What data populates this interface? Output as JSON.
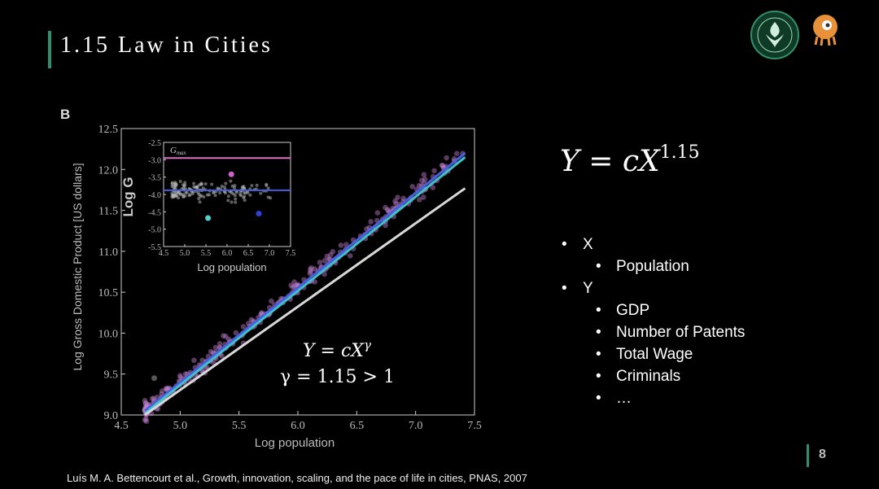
{
  "slide": {
    "title": "1.15 Law in Cities",
    "formula_main": "Y = cX",
    "formula_exp": "1.15",
    "bullets": [
      {
        "label": "X",
        "level": 0
      },
      {
        "label": "Population",
        "level": 1
      },
      {
        "label": "Y",
        "level": 0
      },
      {
        "label": "GDP",
        "level": 1
      },
      {
        "label": "Number of Patents",
        "level": 1
      },
      {
        "label": "Total Wage",
        "level": 1
      },
      {
        "label": "Criminals",
        "level": 1
      },
      {
        "label": "…",
        "level": 1
      }
    ],
    "page_number": "8",
    "citation": "Luís M. A. Bettencourt et al., Growth, innovation, scaling, and the pace of life in cities, PNAS, 2007",
    "accent_color": "#2f8f6f"
  },
  "chart_data": [
    {
      "type": "scatter",
      "panel_label": "B",
      "xlabel": "Log population",
      "ylabel": "Log Gross Domestic Product [US dollars]",
      "xlim": [
        4.5,
        7.5
      ],
      "ylim": [
        9.0,
        12.5
      ],
      "xticks": [
        "4.5",
        "5.0",
        "5.5",
        "6.0",
        "6.5",
        "7.0",
        "7.5"
      ],
      "yticks": [
        "9.0",
        "9.5",
        "10.0",
        "10.5",
        "11.0",
        "11.5",
        "12.0",
        "12.5"
      ],
      "annotation_line1": "Y = cX",
      "annotation_gamma": "γ",
      "annotation_line2": "γ = 1.15 > 1",
      "series": [
        {
          "color": "#4a5fe0",
          "fit_endpoints": [
            [
              4.7,
              9.05
            ],
            [
              7.42,
              12.2
            ]
          ]
        },
        {
          "color": "#40c0c8",
          "fit_endpoints": [
            [
              4.7,
              9.02
            ],
            [
              7.42,
              12.15
            ]
          ]
        },
        {
          "color": "#d8d8d8",
          "fit_endpoints": [
            [
              4.7,
              9.0
            ],
            [
              7.42,
              11.77
            ]
          ]
        }
      ],
      "points_color": "#c080d0",
      "highlight_point": [
        4.78,
        9.45
      ]
    },
    {
      "type": "scatter",
      "role": "inset",
      "xlabel": "Log population",
      "ylabel": "Log G",
      "legend": "G",
      "legend_sub": "max",
      "xlim": [
        4.5,
        7.5
      ],
      "ylim": [
        -5.5,
        -2.5
      ],
      "xticks": [
        "4.5",
        "5.0",
        "5.5",
        "6.0",
        "6.5",
        "7.0",
        "7.5"
      ],
      "yticks": [
        "-2.5",
        "-3.0",
        "-3.5",
        "-4.0",
        "-4.5",
        "-5.0",
        "-5.5"
      ],
      "hlines": [
        {
          "y": -2.95,
          "color": "#e070c8"
        },
        {
          "y": -3.88,
          "color": "#4a5fe0"
        }
      ],
      "points": [
        {
          "x": 6.1,
          "y": -3.42,
          "color": "#d060d0"
        },
        {
          "x": 5.55,
          "y": -4.68,
          "color": "#50d0d0"
        },
        {
          "x": 6.75,
          "y": -4.55,
          "color": "#3040e0"
        }
      ]
    }
  ]
}
